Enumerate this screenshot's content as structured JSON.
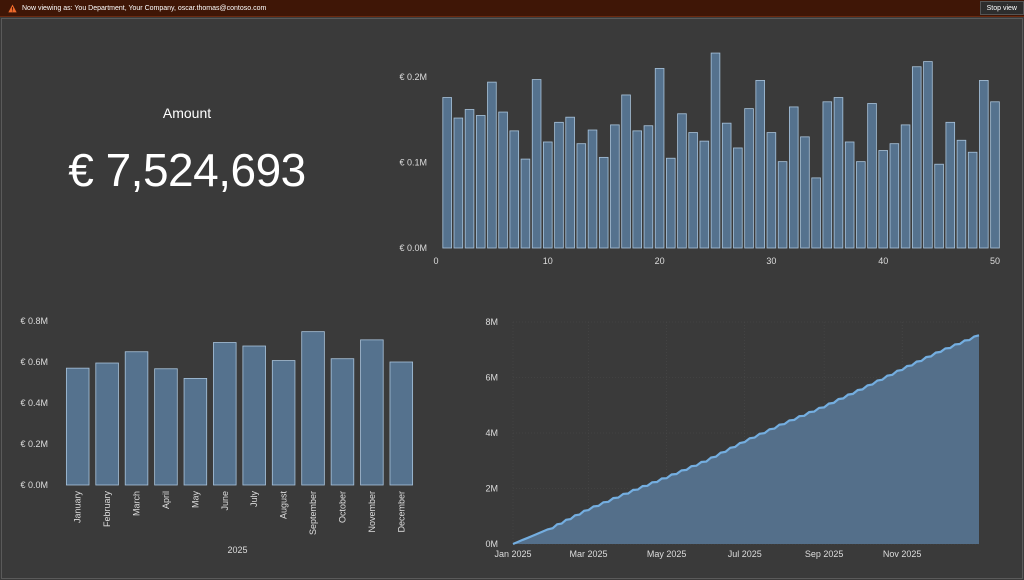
{
  "banner": {
    "text": "Now viewing as: You Department, Your Company, oscar.thomas@contoso.com",
    "stop_label": "Stop view"
  },
  "kpi": {
    "label": "Amount",
    "value": "€ 7,524,693"
  },
  "colors": {
    "bar_fill": "#55728e",
    "bar_stroke": "#a9c4dc",
    "line": "#74aee0",
    "area": "#55728e",
    "axis_text": "#dddddd"
  },
  "chart_data": [
    {
      "id": "bar-by-index",
      "type": "bar",
      "title": "",
      "x": [
        1,
        2,
        3,
        4,
        5,
        6,
        7,
        8,
        9,
        10,
        11,
        12,
        13,
        14,
        15,
        16,
        17,
        18,
        19,
        20,
        21,
        22,
        23,
        24,
        25,
        26,
        27,
        28,
        29,
        30,
        31,
        32,
        33,
        34,
        35,
        36,
        37,
        38,
        39,
        40,
        41,
        42,
        43,
        44,
        45,
        46,
        47,
        48,
        49,
        50
      ],
      "values": [
        0.176,
        0.152,
        0.162,
        0.155,
        0.194,
        0.159,
        0.137,
        0.104,
        0.197,
        0.124,
        0.147,
        0.153,
        0.122,
        0.138,
        0.106,
        0.144,
        0.179,
        0.137,
        0.143,
        0.21,
        0.105,
        0.157,
        0.135,
        0.125,
        0.228,
        0.146,
        0.117,
        0.163,
        0.196,
        0.135,
        0.101,
        0.165,
        0.13,
        0.082,
        0.171,
        0.176,
        0.124,
        0.101,
        0.169,
        0.114,
        0.122,
        0.144,
        0.212,
        0.218,
        0.098,
        0.147,
        0.126,
        0.112,
        0.196,
        0.171
      ],
      "xticks": [
        0,
        10,
        20,
        30,
        40,
        50
      ],
      "yticks": [
        {
          "value": 0,
          "label": "€ 0.0M"
        },
        {
          "value": 0.1,
          "label": "€ 0.1M"
        },
        {
          "value": 0.2,
          "label": "€ 0.2M"
        }
      ],
      "ylim": [
        0,
        0.2
      ],
      "xlim": [
        0,
        50
      ],
      "grid": false
    },
    {
      "id": "bar-by-month",
      "type": "bar",
      "title": "",
      "xlabel": "2025",
      "categories": [
        "January",
        "February",
        "March",
        "April",
        "May",
        "June",
        "July",
        "August",
        "September",
        "October",
        "November",
        "December"
      ],
      "values": [
        0.57,
        0.595,
        0.65,
        0.567,
        0.52,
        0.695,
        0.678,
        0.607,
        0.748,
        0.616,
        0.708,
        0.6
      ],
      "yticks": [
        {
          "value": 0,
          "label": "€ 0.0M"
        },
        {
          "value": 0.2,
          "label": "€ 0.2M"
        },
        {
          "value": 0.4,
          "label": "€ 0.4M"
        },
        {
          "value": 0.6,
          "label": "€ 0.6M"
        },
        {
          "value": 0.8,
          "label": "€ 0.8M"
        }
      ],
      "ylim": [
        0,
        0.8
      ],
      "grid": false
    },
    {
      "id": "cumulative-area",
      "type": "area",
      "title": "",
      "x": [
        "2025-01-01",
        "2025-02-01",
        "2025-03-01",
        "2025-04-01",
        "2025-05-01",
        "2025-06-01",
        "2025-07-01",
        "2025-08-01",
        "2025-09-01",
        "2025-10-01",
        "2025-11-01",
        "2025-12-01",
        "2025-12-31"
      ],
      "values": [
        0.0,
        0.6,
        1.25,
        1.85,
        2.4,
        3.0,
        3.7,
        4.35,
        4.95,
        5.6,
        6.3,
        6.95,
        7.52
      ],
      "xticks": [
        {
          "value": "2025-01-01",
          "label": "Jan 2025"
        },
        {
          "value": "2025-03-01",
          "label": "Mar 2025"
        },
        {
          "value": "2025-05-01",
          "label": "May 2025"
        },
        {
          "value": "2025-07-01",
          "label": "Jul 2025"
        },
        {
          "value": "2025-09-01",
          "label": "Sep 2025"
        },
        {
          "value": "2025-11-01",
          "label": "Nov 2025"
        }
      ],
      "yticks": [
        {
          "value": 0,
          "label": "0M"
        },
        {
          "value": 2,
          "label": "2M"
        },
        {
          "value": 4,
          "label": "4M"
        },
        {
          "value": 6,
          "label": "6M"
        },
        {
          "value": 8,
          "label": "8M"
        }
      ],
      "ylim": [
        0,
        8
      ],
      "grid": true
    }
  ]
}
